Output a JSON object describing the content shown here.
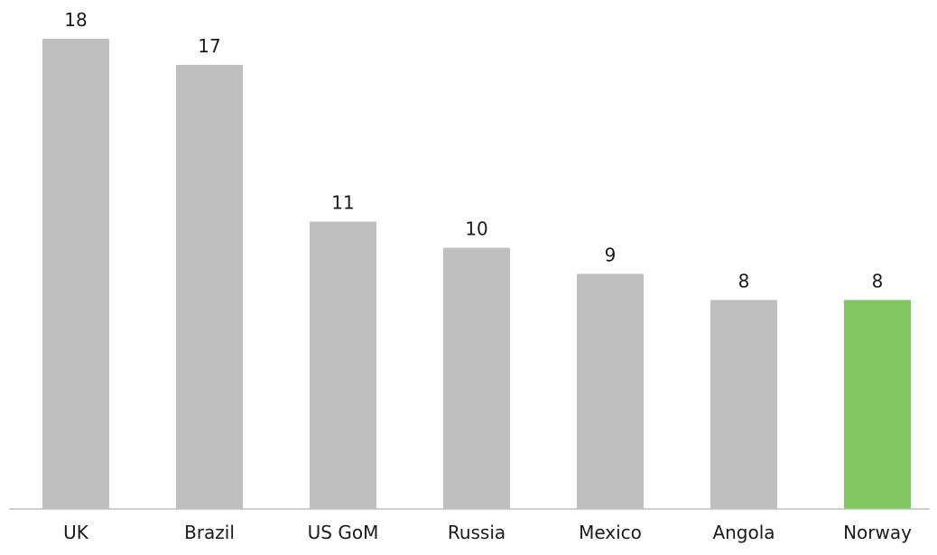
{
  "chart_data": {
    "type": "bar",
    "categories": [
      "UK",
      "Brazil",
      "US GoM",
      "Russia",
      "Mexico",
      "Angola",
      "Norway"
    ],
    "values": [
      18,
      17,
      11,
      10,
      9,
      8,
      8
    ],
    "data_labels": [
      "18",
      "17",
      "11",
      "10",
      "9",
      "8",
      "8"
    ],
    "title": "",
    "xlabel": "",
    "ylabel": "",
    "grid": false,
    "legend": "none",
    "colors": {
      "default_bar": "#bfbfbf",
      "highlight_bar": "#82c662",
      "axis": "#bfbfbf",
      "text": "#1a1a1a"
    },
    "highlight_category": "Norway"
  }
}
